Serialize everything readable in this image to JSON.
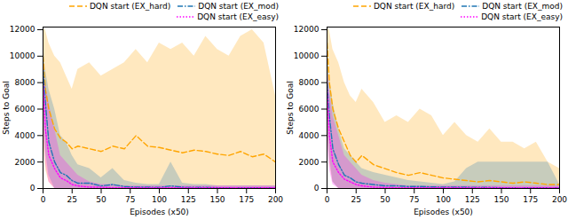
{
  "chart_data": [
    {
      "type": "line",
      "x_label": "Episodes (x50)",
      "y_label": "Steps to Goal",
      "legend": "top",
      "x": [
        0,
        2,
        5,
        10,
        15,
        20,
        25,
        30,
        40,
        50,
        60,
        70,
        80,
        90,
        100,
        110,
        120,
        130,
        140,
        150,
        160,
        170,
        180,
        190,
        200
      ],
      "xlim": [
        0,
        200
      ],
      "xticks": [
        0,
        25,
        50,
        75,
        100,
        125,
        150,
        175,
        200
      ],
      "ylim": [
        0,
        12200
      ],
      "yticks": [
        0,
        2000,
        4000,
        6000,
        8000,
        10000,
        12000
      ],
      "series": [
        {
          "name": "DQN start (EX_hard)",
          "color": "#ffa500",
          "line_style": "dashed",
          "values": [
            10000,
            7500,
            6000,
            4500,
            3800,
            3500,
            3000,
            3200,
            3000,
            2800,
            3200,
            3000,
            4000,
            3200,
            3100,
            2900,
            2700,
            2900,
            2800,
            2600,
            2500,
            2800,
            2400,
            2600,
            2000
          ],
          "lower": [
            4000,
            1500,
            500,
            0,
            0,
            0,
            0,
            0,
            0,
            0,
            0,
            0,
            0,
            0,
            0,
            0,
            0,
            0,
            0,
            0,
            0,
            0,
            0,
            0,
            0
          ],
          "upper": [
            12000,
            12000,
            11000,
            10000,
            9500,
            8500,
            7500,
            9000,
            9500,
            8500,
            9000,
            9500,
            10500,
            9500,
            11000,
            10500,
            11000,
            10000,
            11500,
            10500,
            10000,
            11500,
            12000,
            11000,
            7000
          ]
        },
        {
          "name": "DQN start (EX_mod)",
          "color": "#1f77b4",
          "line_style": "dashdot",
          "values": [
            9000,
            6500,
            3500,
            2000,
            1200,
            1000,
            600,
            400,
            400,
            200,
            300,
            150,
            100,
            100,
            80,
            200,
            100,
            80,
            80,
            60,
            60,
            60,
            50,
            50,
            50
          ],
          "lower": [
            6000,
            3000,
            1000,
            0,
            0,
            0,
            0,
            0,
            0,
            0,
            0,
            0,
            0,
            0,
            0,
            0,
            0,
            0,
            0,
            0,
            0,
            0,
            0,
            0,
            0
          ],
          "upper": [
            11000,
            9000,
            7500,
            6000,
            4000,
            3500,
            2500,
            1800,
            1500,
            800,
            1500,
            600,
            400,
            300,
            300,
            2000,
            400,
            300,
            300,
            200,
            200,
            200,
            200,
            200,
            200
          ]
        },
        {
          "name": "DQN start (EX_easy)",
          "color": "#ff00ff",
          "line_style": "dotted",
          "values": [
            8000,
            4500,
            2500,
            1500,
            800,
            600,
            300,
            200,
            100,
            100,
            50,
            50,
            50,
            50,
            50,
            50,
            50,
            50,
            50,
            50,
            50,
            50,
            50,
            50,
            50
          ],
          "lower": [
            5000,
            2000,
            500,
            0,
            0,
            0,
            0,
            0,
            0,
            0,
            0,
            0,
            0,
            0,
            0,
            0,
            0,
            0,
            0,
            0,
            0,
            0,
            0,
            0,
            0
          ],
          "upper": [
            10000,
            8000,
            6500,
            4500,
            2500,
            2000,
            1500,
            1000,
            500,
            300,
            300,
            200,
            200,
            200,
            200,
            200,
            200,
            200,
            200,
            200,
            200,
            200,
            200,
            200,
            200
          ]
        }
      ]
    },
    {
      "type": "line",
      "x_label": "Episodes (x50)",
      "y_label": "Steps to Goal",
      "legend": "top",
      "x": [
        0,
        2,
        5,
        10,
        15,
        20,
        25,
        30,
        40,
        50,
        60,
        70,
        80,
        90,
        100,
        110,
        120,
        130,
        140,
        150,
        160,
        170,
        180,
        190,
        200
      ],
      "xlim": [
        0,
        200
      ],
      "xticks": [
        0,
        25,
        50,
        75,
        100,
        125,
        150,
        175,
        200
      ],
      "ylim": [
        0,
        12200
      ],
      "yticks": [
        0,
        2000,
        4000,
        6000,
        8000,
        10000,
        12000
      ],
      "series": [
        {
          "name": "DQN start (EX_hard)",
          "color": "#ffa500",
          "line_style": "dashed",
          "values": [
            11000,
            8000,
            6000,
            4500,
            3500,
            2500,
            2000,
            2500,
            1800,
            1500,
            1200,
            1000,
            1200,
            1000,
            800,
            700,
            600,
            500,
            600,
            500,
            400,
            500,
            400,
            300,
            300
          ],
          "lower": [
            5000,
            2000,
            500,
            0,
            0,
            0,
            0,
            0,
            0,
            0,
            0,
            0,
            0,
            0,
            0,
            0,
            0,
            0,
            0,
            0,
            0,
            0,
            0,
            0,
            0
          ],
          "upper": [
            12000,
            12000,
            10500,
            9500,
            8000,
            7000,
            6500,
            7500,
            6500,
            5000,
            5500,
            5000,
            6000,
            5500,
            4000,
            5000,
            4000,
            3500,
            4500,
            3500,
            3500,
            3000,
            3500,
            2000,
            1500
          ]
        },
        {
          "name": "DQN start (EX_mod)",
          "color": "#1f77b4",
          "line_style": "dashdot",
          "values": [
            8000,
            5500,
            3000,
            1800,
            1000,
            800,
            500,
            400,
            300,
            200,
            200,
            150,
            150,
            120,
            100,
            100,
            100,
            80,
            80,
            60,
            60,
            60,
            50,
            50,
            50
          ],
          "lower": [
            5000,
            2500,
            500,
            0,
            0,
            0,
            0,
            0,
            0,
            0,
            0,
            0,
            0,
            0,
            0,
            0,
            0,
            0,
            0,
            0,
            0,
            0,
            0,
            0,
            0
          ],
          "upper": [
            10500,
            8500,
            6500,
            4500,
            3000,
            2500,
            2000,
            1500,
            1200,
            1000,
            800,
            600,
            500,
            400,
            300,
            500,
            1500,
            2000,
            2000,
            2000,
            2000,
            2000,
            2000,
            2000,
            300
          ]
        },
        {
          "name": "DQN start (EX_easy)",
          "color": "#ff00ff",
          "line_style": "dotted",
          "values": [
            7500,
            4000,
            2000,
            1200,
            700,
            500,
            300,
            200,
            100,
            80,
            50,
            50,
            50,
            50,
            50,
            50,
            50,
            50,
            50,
            50,
            50,
            50,
            50,
            50,
            50
          ],
          "lower": [
            4000,
            1500,
            300,
            0,
            0,
            0,
            0,
            0,
            0,
            0,
            0,
            0,
            0,
            0,
            0,
            0,
            0,
            0,
            0,
            0,
            0,
            0,
            0,
            0,
            0
          ],
          "upper": [
            9500,
            7500,
            5500,
            4000,
            2500,
            2000,
            1500,
            1000,
            600,
            400,
            300,
            200,
            200,
            200,
            200,
            200,
            200,
            200,
            200,
            200,
            200,
            200,
            200,
            200,
            200
          ]
        }
      ]
    }
  ]
}
